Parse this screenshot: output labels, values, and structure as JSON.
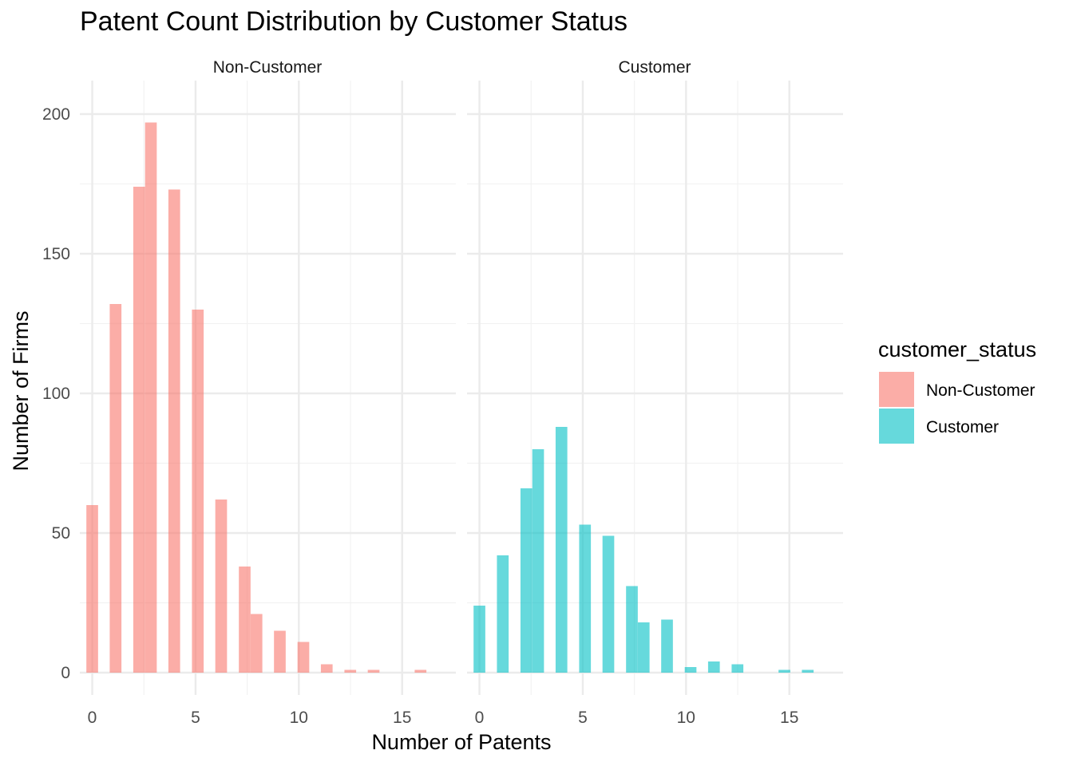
{
  "chart_data": {
    "type": "bar",
    "title": "Patent Count Distribution by Customer Status",
    "xlabel": "Number of Patents",
    "ylabel": "Number of Firms",
    "xlim": [
      -0.6,
      17.6
    ],
    "ylim": [
      -8,
      212
    ],
    "x_ticks": [
      0,
      5,
      10,
      15
    ],
    "y_ticks": [
      0,
      50,
      100,
      150,
      200
    ],
    "bin_width": 0.567,
    "grid": true,
    "legend_position": "right",
    "legend_title": "customer_status",
    "panels": [
      {
        "name": "Non-Customer",
        "color": "#F8766D",
        "bars": [
          {
            "x": 0.0,
            "count": 60
          },
          {
            "x": 1.13,
            "count": 132
          },
          {
            "x": 2.27,
            "count": 174
          },
          {
            "x": 2.84,
            "count": 197
          },
          {
            "x": 3.97,
            "count": 173
          },
          {
            "x": 5.11,
            "count": 130
          },
          {
            "x": 6.24,
            "count": 62
          },
          {
            "x": 7.38,
            "count": 38
          },
          {
            "x": 7.95,
            "count": 21
          },
          {
            "x": 9.08,
            "count": 15
          },
          {
            "x": 10.22,
            "count": 11
          },
          {
            "x": 11.35,
            "count": 3
          },
          {
            "x": 12.49,
            "count": 1
          },
          {
            "x": 13.62,
            "count": 1
          },
          {
            "x": 15.89,
            "count": 1
          }
        ]
      },
      {
        "name": "Customer",
        "color": "#00BFC4",
        "bars": [
          {
            "x": 0.0,
            "count": 24
          },
          {
            "x": 1.13,
            "count": 42
          },
          {
            "x": 2.27,
            "count": 66
          },
          {
            "x": 2.84,
            "count": 80
          },
          {
            "x": 3.97,
            "count": 88
          },
          {
            "x": 5.11,
            "count": 53
          },
          {
            "x": 6.24,
            "count": 49
          },
          {
            "x": 7.38,
            "count": 31
          },
          {
            "x": 7.95,
            "count": 18
          },
          {
            "x": 9.08,
            "count": 19
          },
          {
            "x": 10.22,
            "count": 2
          },
          {
            "x": 11.35,
            "count": 4
          },
          {
            "x": 12.49,
            "count": 3
          },
          {
            "x": 14.76,
            "count": 1
          },
          {
            "x": 15.89,
            "count": 1
          }
        ]
      }
    ]
  }
}
